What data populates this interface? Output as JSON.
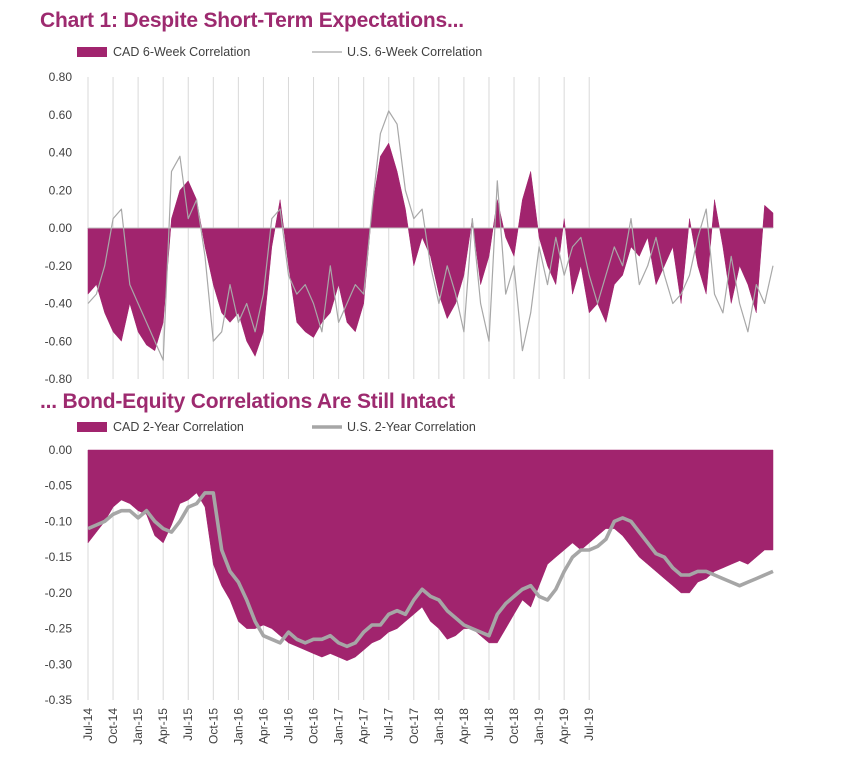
{
  "colors": {
    "cad": "#a1246e",
    "us6w": "#a8a8a8",
    "us2y": "#a6a6a6",
    "grid": "#d9d9d9",
    "axis_text": "#404040",
    "title": "#9d2a6f"
  },
  "chart_data": [
    {
      "type": "area",
      "title": "Chart 1: Despite Short-Term Expectations...",
      "legend_position": "top-left",
      "legend": [
        "CAD 6-Week Correlation",
        "U.S. 6-Week Correlation"
      ],
      "ylim": [
        -0.8,
        0.8
      ],
      "yticks": [
        "0.80",
        "0.60",
        "0.40",
        "0.20",
        "0.00",
        "-0.20",
        "-0.40",
        "-0.60",
        "-0.80"
      ],
      "x_start": "2014-07",
      "x_step_months": 1,
      "x_tick_labels": [
        "Jul-14",
        "Oct-14",
        "Jan-15",
        "Apr-15",
        "Jul-15",
        "Oct-15",
        "Jan-16",
        "Apr-16",
        "Jul-16",
        "Oct-16",
        "Jan-17",
        "Apr-17",
        "Jul-17",
        "Oct-17",
        "Jan-18",
        "Apr-18",
        "Jul-18",
        "Oct-18",
        "Jan-19",
        "Apr-19",
        "Jul-19"
      ],
      "grid": "vertical",
      "series": [
        {
          "name": "CAD 6-Week Correlation",
          "type": "area",
          "values": [
            -0.35,
            -0.3,
            -0.45,
            -0.55,
            -0.6,
            -0.4,
            -0.55,
            -0.62,
            -0.65,
            -0.5,
            0.05,
            0.2,
            0.25,
            0.15,
            -0.1,
            -0.3,
            -0.45,
            -0.5,
            -0.45,
            -0.6,
            -0.68,
            -0.55,
            -0.1,
            0.15,
            -0.2,
            -0.5,
            -0.55,
            -0.58,
            -0.5,
            -0.45,
            -0.3,
            -0.5,
            -0.55,
            -0.4,
            0.1,
            0.38,
            0.45,
            0.3,
            0.1,
            -0.2,
            -0.05,
            -0.15,
            -0.35,
            -0.48,
            -0.4,
            -0.25,
            0.05,
            -0.3,
            -0.15,
            0.15,
            -0.05,
            -0.15,
            0.15,
            0.3,
            -0.05,
            -0.2,
            -0.3,
            0.05,
            -0.35,
            -0.2,
            -0.45,
            -0.4,
            -0.5,
            -0.3,
            -0.25,
            -0.1,
            -0.15,
            -0.05,
            -0.3,
            -0.2,
            -0.1,
            -0.4,
            0.05,
            -0.2,
            -0.35,
            0.15,
            -0.1,
            -0.4,
            -0.2,
            -0.3,
            -0.45,
            0.12,
            0.08
          ]
        },
        {
          "name": "U.S. 6-Week Correlation",
          "type": "line",
          "values": [
            -0.4,
            -0.35,
            -0.2,
            0.05,
            0.1,
            -0.3,
            -0.4,
            -0.5,
            -0.6,
            -0.7,
            0.3,
            0.38,
            0.05,
            0.15,
            -0.15,
            -0.6,
            -0.55,
            -0.3,
            -0.5,
            -0.4,
            -0.55,
            -0.35,
            0.05,
            0.1,
            -0.25,
            -0.35,
            -0.3,
            -0.4,
            -0.55,
            -0.2,
            -0.5,
            -0.4,
            -0.3,
            -0.35,
            0.1,
            0.5,
            0.62,
            0.55,
            0.2,
            0.05,
            0.1,
            -0.2,
            -0.4,
            -0.2,
            -0.35,
            -0.55,
            0.05,
            -0.4,
            -0.6,
            0.25,
            -0.35,
            -0.2,
            -0.65,
            -0.45,
            -0.1,
            -0.3,
            -0.05,
            -0.25,
            -0.1,
            -0.05,
            -0.25,
            -0.4,
            -0.25,
            -0.1,
            -0.2,
            0.05,
            -0.3,
            -0.2,
            -0.05,
            -0.25,
            -0.4,
            -0.35,
            -0.25,
            -0.05,
            0.1,
            -0.35,
            -0.45,
            -0.15,
            -0.4,
            -0.55,
            -0.3,
            -0.4,
            -0.2
          ]
        }
      ]
    },
    {
      "type": "area",
      "title": "... Bond-Equity Correlations Are Still Intact",
      "legend_position": "top-left",
      "legend": [
        "CAD 2-Year Correlation",
        "U.S. 2-Year Correlation"
      ],
      "ylim": [
        -0.35,
        0.0
      ],
      "yticks": [
        "0.00",
        "-0.05",
        "-0.10",
        "-0.15",
        "-0.20",
        "-0.25",
        "-0.30",
        "-0.35"
      ],
      "x_start": "2014-07",
      "x_step_months": 1,
      "x_tick_labels": [
        "Jul-14",
        "Oct-14",
        "Jan-15",
        "Apr-15",
        "Jul-15",
        "Oct-15",
        "Jan-16",
        "Apr-16",
        "Jul-16",
        "Oct-16",
        "Jan-17",
        "Apr-17",
        "Jul-17",
        "Oct-17",
        "Jan-18",
        "Apr-18",
        "Jul-18",
        "Oct-18",
        "Jan-19",
        "Apr-19",
        "Jul-19"
      ],
      "grid": "vertical",
      "series": [
        {
          "name": "CAD 2-Year Correlation",
          "type": "area",
          "values": [
            -0.13,
            -0.115,
            -0.1,
            -0.08,
            -0.07,
            -0.075,
            -0.085,
            -0.09,
            -0.12,
            -0.13,
            -0.105,
            -0.075,
            -0.07,
            -0.06,
            -0.08,
            -0.16,
            -0.19,
            -0.21,
            -0.24,
            -0.25,
            -0.25,
            -0.245,
            -0.25,
            -0.26,
            -0.27,
            -0.275,
            -0.28,
            -0.285,
            -0.29,
            -0.285,
            -0.29,
            -0.295,
            -0.29,
            -0.28,
            -0.27,
            -0.265,
            -0.255,
            -0.25,
            -0.24,
            -0.23,
            -0.22,
            -0.24,
            -0.25,
            -0.265,
            -0.26,
            -0.25,
            -0.25,
            -0.26,
            -0.27,
            -0.27,
            -0.25,
            -0.23,
            -0.21,
            -0.22,
            -0.19,
            -0.16,
            -0.15,
            -0.14,
            -0.13,
            -0.14,
            -0.13,
            -0.12,
            -0.11,
            -0.11,
            -0.12,
            -0.135,
            -0.15,
            -0.16,
            -0.17,
            -0.18,
            -0.19,
            -0.2,
            -0.2,
            -0.185,
            -0.18,
            -0.17,
            -0.165,
            -0.16,
            -0.155,
            -0.16,
            -0.15,
            -0.14,
            -0.14
          ]
        },
        {
          "name": "U.S. 2-Year Correlation",
          "type": "line",
          "values": [
            -0.11,
            -0.105,
            -0.1,
            -0.09,
            -0.085,
            -0.085,
            -0.095,
            -0.085,
            -0.1,
            -0.11,
            -0.115,
            -0.1,
            -0.08,
            -0.075,
            -0.06,
            -0.06,
            -0.14,
            -0.17,
            -0.185,
            -0.21,
            -0.24,
            -0.26,
            -0.265,
            -0.27,
            -0.255,
            -0.265,
            -0.27,
            -0.265,
            -0.265,
            -0.26,
            -0.27,
            -0.275,
            -0.27,
            -0.255,
            -0.245,
            -0.245,
            -0.23,
            -0.225,
            -0.23,
            -0.21,
            -0.195,
            -0.205,
            -0.21,
            -0.225,
            -0.235,
            -0.245,
            -0.25,
            -0.255,
            -0.26,
            -0.23,
            -0.215,
            -0.205,
            -0.195,
            -0.19,
            -0.205,
            -0.21,
            -0.195,
            -0.17,
            -0.15,
            -0.14,
            -0.14,
            -0.135,
            -0.125,
            -0.1,
            -0.095,
            -0.1,
            -0.115,
            -0.13,
            -0.145,
            -0.15,
            -0.165,
            -0.175,
            -0.175,
            -0.17,
            -0.17,
            -0.175,
            -0.18,
            -0.185,
            -0.19,
            -0.185,
            -0.18,
            -0.175,
            -0.17
          ]
        }
      ]
    }
  ]
}
